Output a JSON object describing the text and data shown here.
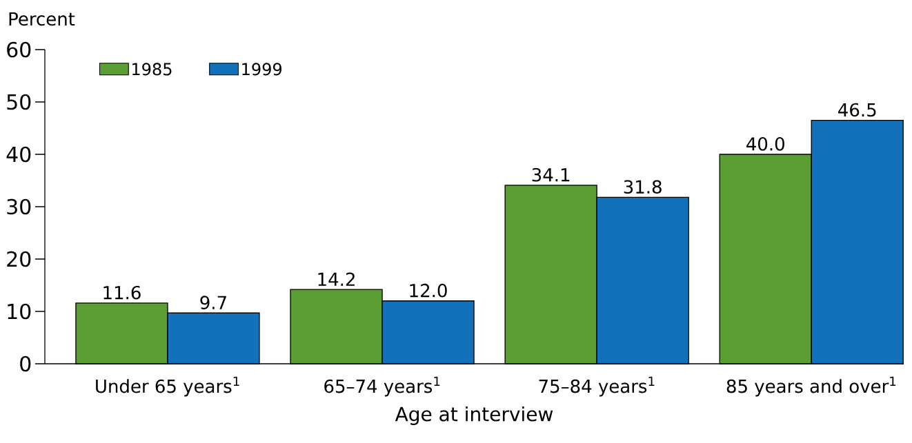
{
  "chart_data": {
    "type": "bar",
    "xlabel": "Age at interview",
    "ylabel": "Percent",
    "categories": [
      "Under 65 years$^{1}$",
      "65–74 years$^{1}$",
      "75–84 years$^{1}$",
      "85 years and over$^{1}$"
    ],
    "series": [
      {
        "name": "1985",
        "color": "#5a9e34",
        "values": [
          11.6,
          14.2,
          34.1,
          40.0
        ],
        "value_labels": [
          "11.6",
          "14.2",
          "34.1",
          "40.0"
        ]
      },
      {
        "name": "1999",
        "color": "#1172bb",
        "values": [
          9.7,
          12.0,
          31.8,
          46.5
        ],
        "value_labels": [
          "9.7",
          "12.0",
          "31.8",
          "46.5"
        ]
      }
    ],
    "ylim": [
      0,
      60
    ],
    "yticks": [
      0,
      10,
      20,
      30,
      40,
      50,
      60
    ],
    "legend": "top left",
    "grid": false
  }
}
